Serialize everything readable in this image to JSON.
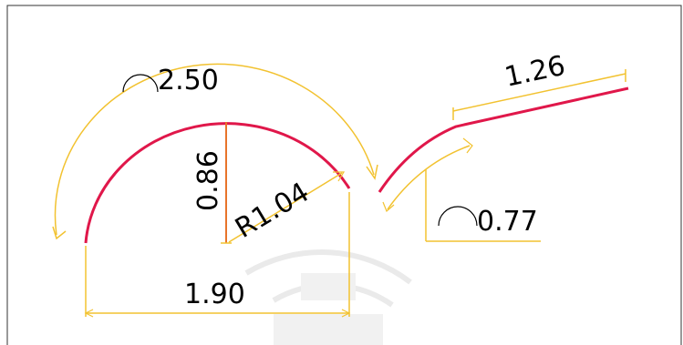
{
  "drawing": {
    "left_arc": {
      "arc_length_label": "2.50",
      "height_label": "0.86",
      "radius_label": "R1.04",
      "chord_label": "1.90"
    },
    "right_curve": {
      "straight_length_label": "1.26",
      "arc_length_label": "0.77"
    }
  },
  "colors": {
    "curve": "#e0174a",
    "dimension": "#f2c230",
    "height_line": "#e8742a",
    "frame": "#333333",
    "watermark": "#d9d9d9"
  },
  "icons": {
    "arc_symbol": "arc-length-symbol",
    "watermark": "university-seal-watermark"
  }
}
